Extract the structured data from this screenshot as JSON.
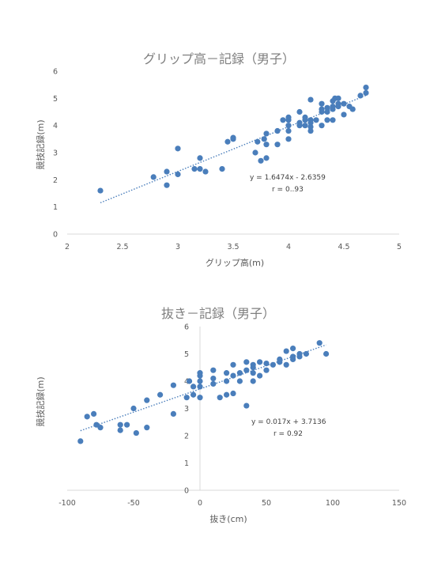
{
  "chart_data": [
    {
      "type": "scatter",
      "title": "グリップ高－記録（男子）",
      "xlabel": "グリップ高(m)",
      "ylabel": "競技記録(m)",
      "xlim": [
        2,
        5
      ],
      "ylim": [
        0,
        6
      ],
      "xticks": [
        "2",
        "2.5",
        "3",
        "3.5",
        "4",
        "4.5",
        "5"
      ],
      "yticks": [
        "0",
        "1",
        "2",
        "3",
        "4",
        "5",
        "6"
      ],
      "trendline": {
        "slope": 1.6474,
        "intercept": -2.6359,
        "x_range": [
          2.3,
          4.7
        ],
        "style": "dotted"
      },
      "annotation": {
        "equation": "y = 1.6474x - 2.6359",
        "r": "r = 0..93"
      },
      "color": "#4a7ebb",
      "points": [
        [
          2.3,
          1.6
        ],
        [
          2.78,
          2.1
        ],
        [
          2.9,
          2.3
        ],
        [
          2.9,
          1.8
        ],
        [
          3.0,
          2.2
        ],
        [
          3.0,
          3.15
        ],
        [
          3.15,
          2.4
        ],
        [
          3.2,
          2.4
        ],
        [
          3.2,
          2.8
        ],
        [
          3.25,
          2.3
        ],
        [
          3.4,
          2.4
        ],
        [
          3.45,
          3.4
        ],
        [
          3.5,
          3.5
        ],
        [
          3.5,
          3.55
        ],
        [
          3.7,
          3.0
        ],
        [
          3.72,
          3.4
        ],
        [
          3.75,
          2.7
        ],
        [
          3.78,
          3.5
        ],
        [
          3.8,
          2.8
        ],
        [
          3.8,
          3.3
        ],
        [
          3.8,
          3.7
        ],
        [
          3.9,
          3.3
        ],
        [
          3.9,
          3.8
        ],
        [
          3.95,
          4.2
        ],
        [
          4.0,
          3.5
        ],
        [
          4.0,
          3.8
        ],
        [
          4.0,
          4.0
        ],
        [
          4.0,
          4.2
        ],
        [
          4.0,
          4.3
        ],
        [
          4.1,
          4.0
        ],
        [
          4.1,
          4.1
        ],
        [
          4.1,
          4.5
        ],
        [
          4.15,
          4.0
        ],
        [
          4.15,
          4.2
        ],
        [
          4.15,
          4.3
        ],
        [
          4.2,
          3.8
        ],
        [
          4.2,
          3.95
        ],
        [
          4.2,
          4.1
        ],
        [
          4.2,
          4.2
        ],
        [
          4.25,
          4.2
        ],
        [
          4.3,
          4.0
        ],
        [
          4.3,
          4.5
        ],
        [
          4.3,
          4.6
        ],
        [
          4.3,
          4.8
        ],
        [
          4.35,
          4.2
        ],
        [
          4.35,
          4.5
        ],
        [
          4.4,
          4.2
        ],
        [
          4.4,
          4.6
        ],
        [
          4.4,
          4.7
        ],
        [
          4.4,
          4.9
        ],
        [
          4.42,
          5.0
        ],
        [
          4.45,
          4.8
        ],
        [
          4.45,
          5.0
        ],
        [
          4.5,
          4.4
        ],
        [
          4.5,
          4.8
        ],
        [
          4.55,
          4.7
        ],
        [
          4.58,
          4.6
        ],
        [
          4.65,
          5.1
        ],
        [
          4.7,
          5.2
        ],
        [
          4.7,
          5.4
        ],
        [
          4.35,
          4.65
        ],
        [
          4.45,
          4.7
        ],
        [
          4.2,
          4.95
        ]
      ]
    },
    {
      "type": "scatter",
      "title": "抜き－記録（男子）",
      "xlabel": "抜き(cm)",
      "ylabel": "競技記録(m)",
      "xlim": [
        -100,
        150
      ],
      "ylim": [
        0,
        6
      ],
      "xticks": [
        "-100",
        "-50",
        "0",
        "50",
        "100",
        "150"
      ],
      "yticks": [
        "0",
        "1",
        "2",
        "3",
        "4",
        "5",
        "6"
      ],
      "trendline": {
        "slope": 0.017,
        "intercept": 3.7136,
        "x_range": [
          -90,
          95
        ],
        "style": "dotted"
      },
      "annotation": {
        "equation": "y = 0.017x + 3.7136",
        "r": "r = 0.92"
      },
      "color": "#4a7ebb",
      "points": [
        [
          -90,
          1.8
        ],
        [
          -85,
          2.7
        ],
        [
          -80,
          2.8
        ],
        [
          -78,
          2.4
        ],
        [
          -75,
          2.3
        ],
        [
          -60,
          2.2
        ],
        [
          -60,
          2.4
        ],
        [
          -55,
          2.4
        ],
        [
          -50,
          3.0
        ],
        [
          -48,
          2.1
        ],
        [
          -40,
          2.3
        ],
        [
          -40,
          3.3
        ],
        [
          -30,
          3.5
        ],
        [
          -20,
          2.8
        ],
        [
          -20,
          3.85
        ],
        [
          -10,
          3.4
        ],
        [
          -8,
          4.0
        ],
        [
          -5,
          3.8
        ],
        [
          -5,
          3.5
        ],
        [
          0,
          3.4
        ],
        [
          0,
          3.8
        ],
        [
          0,
          4.0
        ],
        [
          0,
          4.2
        ],
        [
          0,
          4.3
        ],
        [
          10,
          3.9
        ],
        [
          10,
          4.1
        ],
        [
          10,
          4.4
        ],
        [
          15,
          3.4
        ],
        [
          20,
          3.5
        ],
        [
          20,
          4.0
        ],
        [
          20,
          4.3
        ],
        [
          25,
          3.55
        ],
        [
          25,
          4.2
        ],
        [
          25,
          4.6
        ],
        [
          30,
          4.0
        ],
        [
          30,
          4.3
        ],
        [
          35,
          3.1
        ],
        [
          35,
          4.4
        ],
        [
          35,
          4.7
        ],
        [
          40,
          4.0
        ],
        [
          40,
          4.3
        ],
        [
          40,
          4.5
        ],
        [
          40,
          4.6
        ],
        [
          45,
          4.2
        ],
        [
          45,
          4.7
        ],
        [
          50,
          4.4
        ],
        [
          50,
          4.65
        ],
        [
          55,
          4.6
        ],
        [
          60,
          4.7
        ],
        [
          60,
          4.8
        ],
        [
          65,
          4.6
        ],
        [
          65,
          5.1
        ],
        [
          70,
          4.8
        ],
        [
          70,
          4.9
        ],
        [
          70,
          5.2
        ],
        [
          75,
          4.9
        ],
        [
          75,
          5.0
        ],
        [
          80,
          5.0
        ],
        [
          90,
          5.4
        ],
        [
          95,
          5.0
        ]
      ]
    }
  ]
}
